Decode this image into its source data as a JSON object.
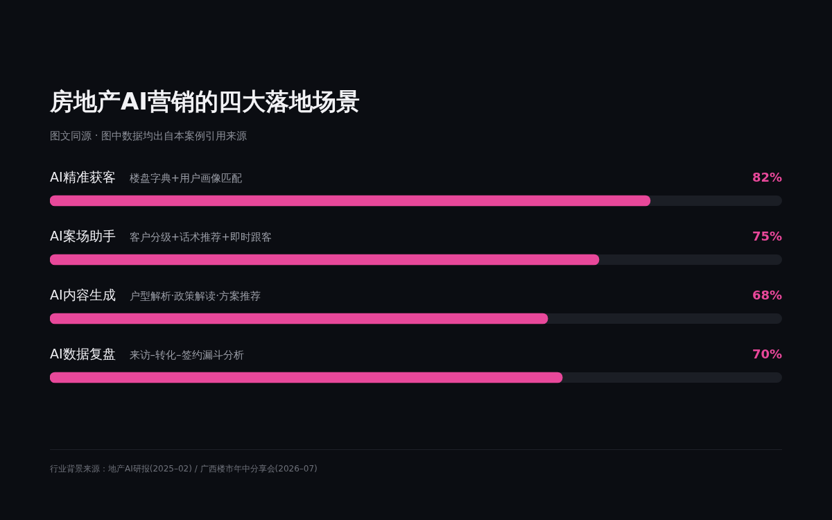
{
  "chart_data": {
    "type": "bar",
    "orientation": "horizontal",
    "title": "房地产AI营销的四大落地场景",
    "subtitle": "图文同源 · 图中数据均出自本案例引用来源",
    "categories": [
      "AI精准获客",
      "AI案场助手",
      "AI内容生成",
      "AI数据复盘"
    ],
    "values": [
      82,
      75,
      68,
      70
    ],
    "value_labels": [
      "82%",
      "75%",
      "68%",
      "70%"
    ],
    "color": "#e8489a",
    "xlim": [
      0,
      100
    ],
    "tick_labels": "y",
    "legend": false,
    "annotations": [
      "楼盘字典+用户画像匹配",
      "客户分级+话术推荐+即时跟客",
      "户型解析·政策解读·方案推荐",
      "来访–转化–签约漏斗分析",
      "行业背景来源：地产AI研报(2025–02) / 广西楼市年中分享会(2026–07)"
    ]
  }
}
